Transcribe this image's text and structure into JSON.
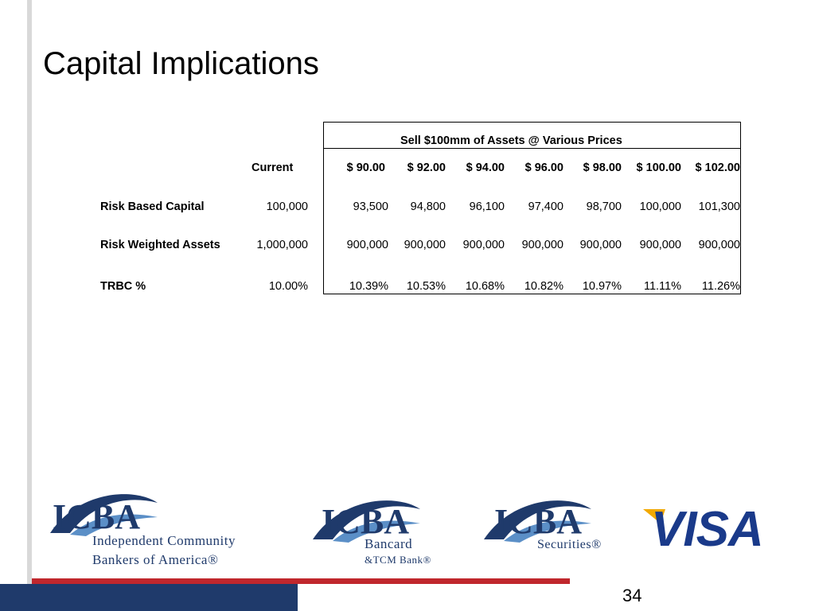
{
  "title": "Capital Implications",
  "table": {
    "group_header": "Sell $100mm of Assets @ Various Prices",
    "current_label": "Current",
    "price_headers": [
      "$   90.00",
      "$  92.00",
      "$  94.00",
      "$  96.00",
      "$  98.00",
      "$ 100.00",
      "$ 102.00"
    ],
    "rows": [
      {
        "label": "Risk Based Capital",
        "current": "100,000",
        "values": [
          "93,500",
          "94,800",
          "96,100",
          "97,400",
          "98,700",
          "100,000",
          "101,300"
        ]
      },
      {
        "label": "Risk Weighted Assets",
        "current": "1,000,000",
        "values": [
          "900,000",
          "900,000",
          "900,000",
          "900,000",
          "900,000",
          "900,000",
          "900,000"
        ]
      },
      {
        "label": "TRBC %",
        "current": "10.00%",
        "values": [
          "10.39%",
          "10.53%",
          "10.68%",
          "10.82%",
          "10.97%",
          "11.11%",
          "11.26%"
        ]
      }
    ]
  },
  "logos": {
    "icba_main": {
      "letters": "ICBA",
      "line1": "Independent Community",
      "line2": "Bankers of America®"
    },
    "icba_bancard": {
      "letters": "ICBA",
      "line1": "Bancard",
      "line2": "&TCM Bank®"
    },
    "icba_securities": {
      "letters": "ICBA",
      "line1": "Securities®"
    },
    "visa": {
      "text": "VISA"
    }
  },
  "colors": {
    "navy": "#1f3a6b",
    "red": "#c0272d",
    "visa_blue": "#1a3a8a",
    "visa_gold": "#f2a900",
    "gray": "#d9d9d9"
  },
  "page_number": "34"
}
